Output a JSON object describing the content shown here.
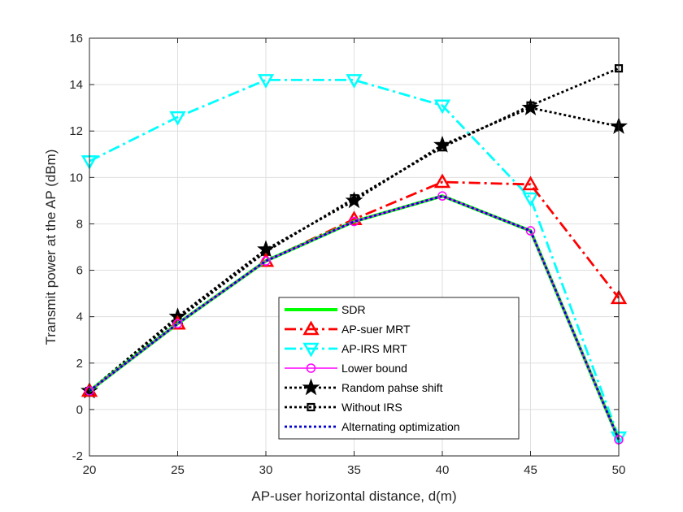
{
  "chart_data": {
    "type": "line",
    "xlabel": "AP-user horizontal distance, d(m)",
    "ylabel": "Transmit power at the AP (dBm)",
    "xlim": [
      20,
      50
    ],
    "ylim": [
      -2,
      16
    ],
    "xticks": [
      20,
      25,
      30,
      35,
      40,
      45,
      50
    ],
    "yticks": [
      -2,
      0,
      2,
      4,
      6,
      8,
      10,
      12,
      14,
      16
    ],
    "grid": true,
    "legend_position": "lower-center",
    "x": [
      20,
      25,
      30,
      35,
      40,
      45,
      50
    ],
    "series": [
      {
        "name": "SDR",
        "color": "#00ff00",
        "style": "solid",
        "marker": "none",
        "values": [
          0.8,
          3.7,
          6.4,
          8.1,
          9.2,
          7.7,
          -1.3
        ]
      },
      {
        "name": "AP-suer MRT",
        "color": "#ff0000",
        "style": "dashdot",
        "marker": "triangle-up",
        "values": [
          0.8,
          3.7,
          6.4,
          8.2,
          9.8,
          9.7,
          4.8
        ]
      },
      {
        "name": "AP-IRS MRT",
        "color": "#00ffff",
        "style": "dashdot",
        "marker": "triangle-down",
        "values": [
          10.7,
          12.6,
          14.2,
          14.2,
          13.1,
          9.1,
          -1.2
        ]
      },
      {
        "name": "Lower bound",
        "color": "#ff00ff",
        "style": "solid",
        "marker": "circle",
        "values": [
          0.8,
          3.7,
          6.4,
          8.1,
          9.2,
          7.7,
          -1.3
        ]
      },
      {
        "name": "Random pahse shift",
        "color": "#000000",
        "style": "dotted",
        "marker": "star",
        "values": [
          0.8,
          4.0,
          6.9,
          9.0,
          11.4,
          13.0,
          12.2
        ]
      },
      {
        "name": "Without IRS",
        "color": "#000000",
        "style": "dotted",
        "marker": "square",
        "values": [
          0.8,
          3.9,
          6.8,
          9.1,
          11.3,
          13.1,
          14.7
        ]
      },
      {
        "name": "Alternating optimization",
        "color": "#0000cc",
        "style": "dotted",
        "marker": "none",
        "values": [
          0.8,
          3.7,
          6.4,
          8.1,
          9.2,
          7.7,
          -1.3
        ]
      }
    ]
  }
}
